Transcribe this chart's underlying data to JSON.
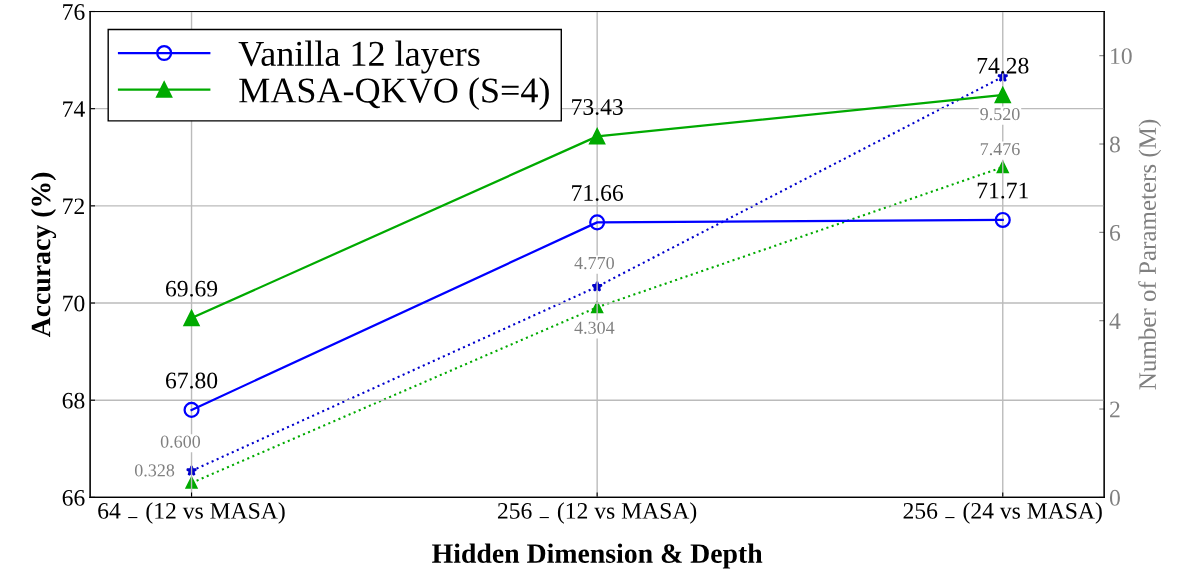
{
  "chart_data": {
    "type": "line",
    "xlabel": "Hidden Dimension & Depth",
    "ylabel": "Accuracy (%)",
    "y2label": "Number of Parameters (M)",
    "categories": [
      "64 $_{−}$ (12 vs MASA)",
      "256 $_{−}$ (12 vs MASA)",
      "256 $_{−}$ (24 vs MASA)"
    ],
    "series": [
      {
        "name": "Vanilla 12 layers",
        "color": "#0000ff",
        "values": [
          67.8,
          71.66,
          71.71
        ],
        "value_labels": [
          "67.80",
          "71.66",
          "71.71"
        ],
        "marker": "circle",
        "line_style": "solid"
      },
      {
        "name": "MASA-QKVO (S=4)",
        "color": "#00aa00",
        "values": [
          69.69,
          73.43,
          74.28
        ],
        "value_labels": [
          "69.69",
          "73.43",
          "74.28"
        ],
        "marker": "triangle",
        "line_style": "solid"
      },
      {
        "color": "#0000cc",
        "values": [
          0.6,
          4.77,
          9.52
        ],
        "value_labels": [
          "0.600",
          "4.770",
          "9.520"
        ],
        "axis": "y2",
        "marker": "star",
        "line_style": "dotted"
      },
      {
        "color": "#00aa00",
        "values": [
          0.328,
          4.304,
          7.476
        ],
        "value_labels": [
          "0.328",
          "4.304",
          "7.476"
        ],
        "axis": "y2",
        "marker": "triangle",
        "line_style": "dotted"
      }
    ],
    "ylim": [
      66,
      76
    ],
    "yticks": [
      66,
      68,
      70,
      72,
      74,
      76
    ],
    "y2lim": [
      0,
      11
    ],
    "y2ticks": [
      0,
      2,
      4,
      6,
      8,
      10
    ],
    "grid": true,
    "legend": "top left"
  }
}
